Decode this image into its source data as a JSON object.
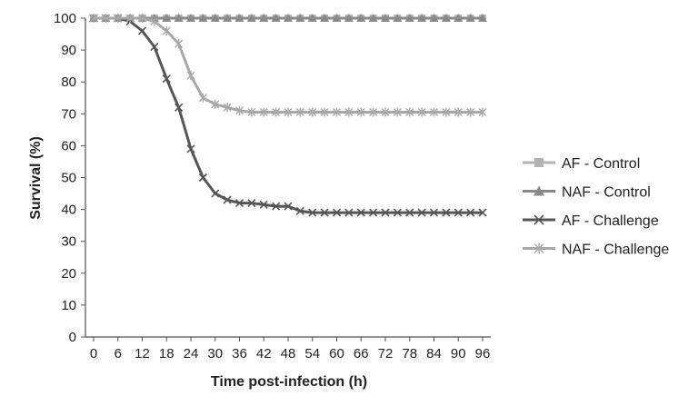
{
  "chart_data": {
    "type": "line",
    "title": "",
    "xlabel": "Time post-infection (h)",
    "ylabel": "Survival (%)",
    "xlim": [
      0,
      96
    ],
    "ylim": [
      0,
      100
    ],
    "x_ticks": [
      0,
      6,
      12,
      18,
      24,
      30,
      36,
      42,
      48,
      54,
      60,
      66,
      72,
      78,
      84,
      90,
      96
    ],
    "y_ticks": [
      0,
      10,
      20,
      30,
      40,
      50,
      60,
      70,
      80,
      90,
      100
    ],
    "grid": false,
    "legend_position": "right",
    "x": [
      0,
      3,
      6,
      9,
      12,
      15,
      18,
      21,
      24,
      27,
      30,
      33,
      36,
      39,
      42,
      45,
      48,
      51,
      54,
      57,
      60,
      63,
      66,
      69,
      72,
      75,
      78,
      81,
      84,
      87,
      90,
      93,
      96
    ],
    "series": [
      {
        "name": "AF - Control",
        "marker": "square",
        "color": "#b3b3b3",
        "values": [
          100,
          100,
          100,
          100,
          100,
          100,
          100,
          100,
          100,
          100,
          100,
          100,
          100,
          100,
          100,
          100,
          100,
          100,
          100,
          100,
          100,
          100,
          100,
          100,
          100,
          100,
          100,
          100,
          100,
          100,
          100,
          100,
          100
        ]
      },
      {
        "name": "NAF - Control",
        "marker": "triangle",
        "color": "#8a8a8a",
        "values": [
          100,
          100,
          100,
          100,
          100,
          100,
          100,
          100,
          100,
          100,
          100,
          100,
          100,
          100,
          100,
          100,
          100,
          100,
          100,
          100,
          100,
          100,
          100,
          100,
          100,
          100,
          100,
          100,
          100,
          100,
          100,
          100,
          100
        ]
      },
      {
        "name": "AF - Challenge",
        "marker": "x",
        "color": "#555555",
        "values": [
          100,
          100,
          100,
          99,
          96,
          91,
          81,
          72,
          59,
          50,
          45,
          43,
          42,
          42,
          41.5,
          41,
          41,
          39.5,
          39,
          39,
          39,
          39,
          39,
          39,
          39,
          39,
          39,
          39,
          39,
          39,
          39,
          39,
          39
        ]
      },
      {
        "name": "NAF - Challenge",
        "marker": "asterisk",
        "color": "#a8a8a8",
        "values": [
          100,
          100,
          100,
          100,
          100,
          99,
          96,
          92,
          82,
          75,
          73,
          72,
          71,
          70.5,
          70.5,
          70.5,
          70.5,
          70.5,
          70.5,
          70.5,
          70.5,
          70.5,
          70.5,
          70.5,
          70.5,
          70.5,
          70.5,
          70.5,
          70.5,
          70.5,
          70.5,
          70.5,
          70.5
        ]
      }
    ]
  }
}
